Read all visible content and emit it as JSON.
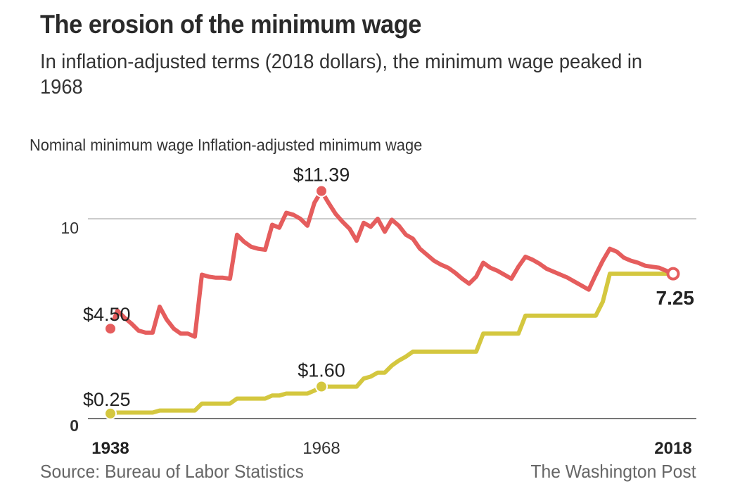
{
  "header": {
    "title": "The erosion of the minimum wage",
    "subtitle": "In inflation-adjusted terms (2018 dollars), the minimum wage peaked in 1968"
  },
  "footer": {
    "source": "Source: Bureau of Labor Statistics",
    "credit": "The Washington Post"
  },
  "chart_data": {
    "type": "line",
    "title": "The erosion of the minimum wage",
    "subtitle": "In inflation-adjusted terms (2018 dollars), the minimum wage peaked in 1968",
    "xlabel": "",
    "ylabel": "",
    "xlim": [
      1938,
      2018
    ],
    "ylim": [
      0,
      12
    ],
    "grid": true,
    "legend": "top-left",
    "y_ticks": [
      {
        "value": 0,
        "label": "0",
        "bold": true
      },
      {
        "value": 10,
        "label": "10",
        "bold": false
      }
    ],
    "x_ticks": [
      {
        "value": 1938,
        "label": "1938",
        "bold": true
      },
      {
        "value": 1968,
        "label": "1968",
        "bold": false
      },
      {
        "value": 2018,
        "label": "2018",
        "bold": true
      }
    ],
    "colors": {
      "nominal": "#d4c73f",
      "inflation_adjusted": "#e55d5d",
      "gridline": "#cccccc",
      "baseline": "#777777"
    },
    "series": [
      {
        "name": "Nominal minimum wage",
        "key": "nominal",
        "step": true,
        "points": [
          [
            1938,
            0.25
          ],
          [
            1939,
            0.3
          ],
          [
            1944,
            0.3
          ],
          [
            1945,
            0.4
          ],
          [
            1950,
            0.4
          ],
          [
            1951,
            0.75
          ],
          [
            1955,
            0.75
          ],
          [
            1956,
            1.0
          ],
          [
            1960,
            1.0
          ],
          [
            1961,
            1.15
          ],
          [
            1962,
            1.15
          ],
          [
            1963,
            1.25
          ],
          [
            1966,
            1.25
          ],
          [
            1967,
            1.4
          ],
          [
            1968,
            1.6
          ],
          [
            1973,
            1.6
          ],
          [
            1974,
            2.0
          ],
          [
            1975,
            2.1
          ],
          [
            1976,
            2.3
          ],
          [
            1977,
            2.3
          ],
          [
            1978,
            2.65
          ],
          [
            1979,
            2.9
          ],
          [
            1980,
            3.1
          ],
          [
            1981,
            3.35
          ],
          [
            1990,
            3.35
          ],
          [
            1991,
            4.25
          ],
          [
            1996,
            4.25
          ],
          [
            1997,
            5.15
          ],
          [
            2007,
            5.15
          ],
          [
            2008,
            5.85
          ],
          [
            2009,
            7.25
          ],
          [
            2018,
            7.25
          ]
        ],
        "annotations": [
          {
            "x": 1938,
            "y": 0.25,
            "label": "$0.25",
            "marker": "filled"
          },
          {
            "x": 1968,
            "y": 1.6,
            "label": "$1.60",
            "marker": "filled"
          }
        ]
      },
      {
        "name": "Inflation-adjusted minimum wage",
        "key": "inflation_adjusted",
        "step": false,
        "points": [
          [
            1938,
            4.5
          ],
          [
            1939,
            5.4
          ],
          [
            1940,
            5.05
          ],
          [
            1941,
            4.75
          ],
          [
            1942,
            4.4
          ],
          [
            1943,
            4.3
          ],
          [
            1944,
            4.3
          ],
          [
            1945,
            5.6
          ],
          [
            1946,
            4.95
          ],
          [
            1947,
            4.5
          ],
          [
            1948,
            4.25
          ],
          [
            1949,
            4.25
          ],
          [
            1950,
            4.1
          ],
          [
            1951,
            7.2
          ],
          [
            1952,
            7.1
          ],
          [
            1953,
            7.05
          ],
          [
            1954,
            7.05
          ],
          [
            1955,
            7.0
          ],
          [
            1956,
            9.2
          ],
          [
            1957,
            8.85
          ],
          [
            1958,
            8.6
          ],
          [
            1959,
            8.5
          ],
          [
            1960,
            8.45
          ],
          [
            1961,
            9.7
          ],
          [
            1962,
            9.55
          ],
          [
            1963,
            10.3
          ],
          [
            1964,
            10.2
          ],
          [
            1965,
            10.0
          ],
          [
            1966,
            9.65
          ],
          [
            1967,
            10.8
          ],
          [
            1968,
            11.39
          ],
          [
            1969,
            10.8
          ],
          [
            1970,
            10.25
          ],
          [
            1971,
            9.85
          ],
          [
            1972,
            9.5
          ],
          [
            1973,
            8.9
          ],
          [
            1974,
            9.8
          ],
          [
            1975,
            9.6
          ],
          [
            1976,
            10.0
          ],
          [
            1977,
            9.35
          ],
          [
            1978,
            9.95
          ],
          [
            1979,
            9.65
          ],
          [
            1980,
            9.2
          ],
          [
            1981,
            9.0
          ],
          [
            1982,
            8.5
          ],
          [
            1983,
            8.2
          ],
          [
            1984,
            7.9
          ],
          [
            1985,
            7.7
          ],
          [
            1986,
            7.55
          ],
          [
            1987,
            7.3
          ],
          [
            1988,
            7.0
          ],
          [
            1989,
            6.75
          ],
          [
            1990,
            7.1
          ],
          [
            1991,
            7.8
          ],
          [
            1992,
            7.55
          ],
          [
            1993,
            7.4
          ],
          [
            1994,
            7.2
          ],
          [
            1995,
            7.0
          ],
          [
            1996,
            7.6
          ],
          [
            1997,
            8.1
          ],
          [
            1998,
            7.95
          ],
          [
            1999,
            7.75
          ],
          [
            2000,
            7.5
          ],
          [
            2001,
            7.35
          ],
          [
            2002,
            7.2
          ],
          [
            2003,
            7.05
          ],
          [
            2004,
            6.85
          ],
          [
            2005,
            6.65
          ],
          [
            2006,
            6.45
          ],
          [
            2007,
            7.2
          ],
          [
            2008,
            7.9
          ],
          [
            2009,
            8.5
          ],
          [
            2010,
            8.35
          ],
          [
            2011,
            8.05
          ],
          [
            2012,
            7.9
          ],
          [
            2013,
            7.8
          ],
          [
            2014,
            7.65
          ],
          [
            2015,
            7.6
          ],
          [
            2016,
            7.55
          ],
          [
            2017,
            7.4
          ],
          [
            2018,
            7.25
          ]
        ],
        "annotations": [
          {
            "x": 1938,
            "y": 4.5,
            "label": "$4.50",
            "marker": "filled"
          },
          {
            "x": 1968,
            "y": 11.39,
            "label": "$11.39",
            "marker": "filled"
          },
          {
            "x": 2018,
            "y": 7.25,
            "label": "7.25",
            "marker": "hollow"
          }
        ]
      }
    ]
  }
}
